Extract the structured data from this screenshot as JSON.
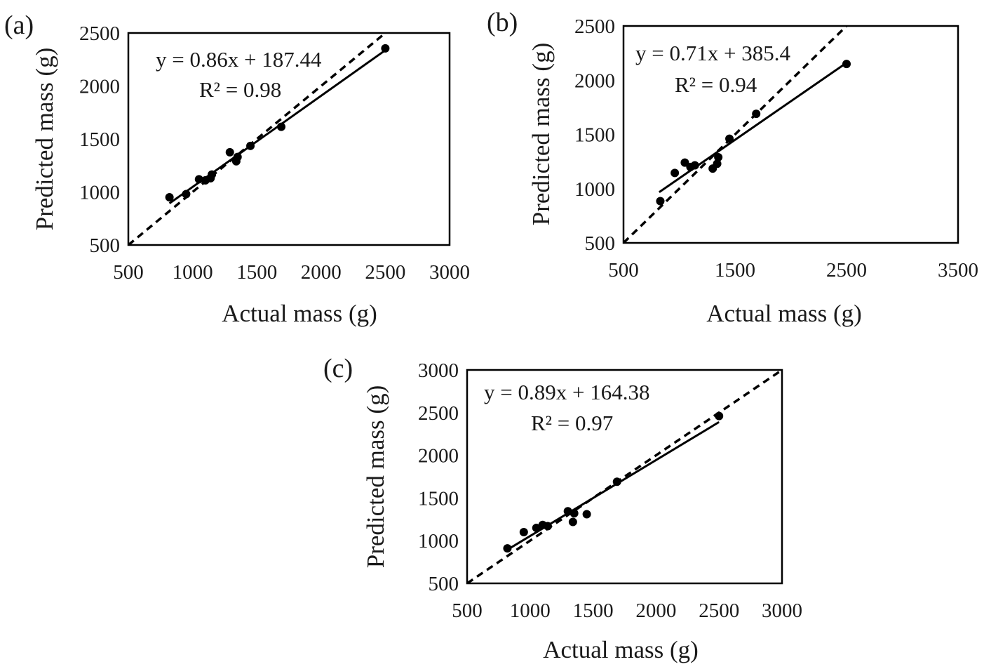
{
  "chart_data": [
    {
      "type": "scatter",
      "panel_label": "(a)",
      "xlabel": "Actual mass (g)",
      "ylabel": "Predicted mass (g)",
      "xlim": [
        500,
        3000
      ],
      "ylim": [
        500,
        2500
      ],
      "xticks": [
        500,
        1000,
        1500,
        2000,
        2500,
        3000
      ],
      "yticks": [
        500,
        1000,
        1500,
        2000,
        2500
      ],
      "equation": "y = 0.86x + 187.44",
      "r2": "R² = 0.98",
      "fit": {
        "slope": 0.86,
        "intercept": 187.44,
        "x_range": [
          820,
          2500
        ]
      },
      "identity_line": true,
      "points": [
        [
          820,
          950
        ],
        [
          950,
          980
        ],
        [
          1050,
          1120
        ],
        [
          1100,
          1110
        ],
        [
          1140,
          1130
        ],
        [
          1150,
          1165
        ],
        [
          1290,
          1375
        ],
        [
          1340,
          1290
        ],
        [
          1350,
          1330
        ],
        [
          1450,
          1435
        ],
        [
          1690,
          1615
        ],
        [
          2500,
          2355
        ]
      ]
    },
    {
      "type": "scatter",
      "panel_label": "(b)",
      "xlabel": "Actual mass (g)",
      "ylabel": "Predicted mass (g)",
      "xlim": [
        500,
        3500
      ],
      "ylim": [
        500,
        2500
      ],
      "xticks": [
        500,
        1500,
        2500,
        3500
      ],
      "yticks": [
        500,
        1000,
        1500,
        2000,
        2500
      ],
      "equation": "y = 0.71x + 385.4",
      "r2": "R² = 0.94",
      "fit": {
        "slope": 0.71,
        "intercept": 385.4,
        "x_range": [
          820,
          2500
        ]
      },
      "identity_line": true,
      "points": [
        [
          830,
          885
        ],
        [
          960,
          1145
        ],
        [
          1050,
          1240
        ],
        [
          1100,
          1200
        ],
        [
          1140,
          1215
        ],
        [
          1300,
          1185
        ],
        [
          1340,
          1230
        ],
        [
          1350,
          1290
        ],
        [
          1450,
          1460
        ],
        [
          1690,
          1690
        ],
        [
          2500,
          2150
        ]
      ]
    },
    {
      "type": "scatter",
      "panel_label": "(c)",
      "xlabel": "Actual mass (g)",
      "ylabel": "Predicted mass (g)",
      "xlim": [
        500,
        3000
      ],
      "ylim": [
        500,
        3000
      ],
      "xticks": [
        500,
        1000,
        1500,
        2000,
        2500,
        3000
      ],
      "yticks": [
        500,
        1000,
        1500,
        2000,
        2500,
        3000
      ],
      "equation": "y = 0.89x + 164.38",
      "r2": "R² = 0.97",
      "fit": {
        "slope": 0.89,
        "intercept": 164.38,
        "x_range": [
          820,
          2500
        ]
      },
      "identity_line": true,
      "points": [
        [
          820,
          910
        ],
        [
          950,
          1100
        ],
        [
          1050,
          1150
        ],
        [
          1100,
          1185
        ],
        [
          1140,
          1170
        ],
        [
          1300,
          1345
        ],
        [
          1340,
          1220
        ],
        [
          1350,
          1320
        ],
        [
          1450,
          1310
        ],
        [
          1690,
          1690
        ],
        [
          2500,
          2460
        ]
      ]
    }
  ]
}
